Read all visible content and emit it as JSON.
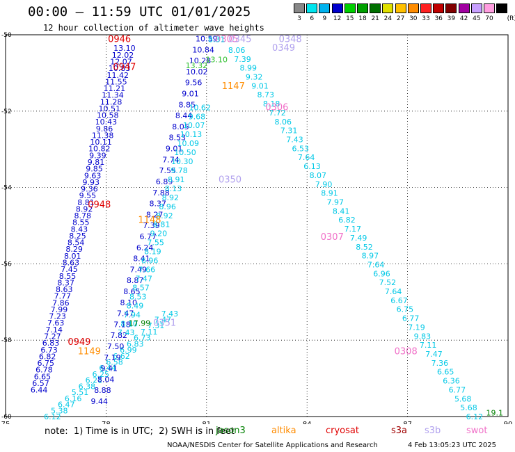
{
  "header": {
    "title": "00:00 — 11:59 UTC 01/01/2025",
    "subtitle": "12 hour collection of altimeter wave heights"
  },
  "colorbar": {
    "unit": "(ft)",
    "levels": [
      {
        "label": "3",
        "color": "#888888"
      },
      {
        "label": "6",
        "color": "#00e5ee"
      },
      {
        "label": "9",
        "color": "#00b2ee"
      },
      {
        "label": "12",
        "color": "#0000cd"
      },
      {
        "label": "15",
        "color": "#00d000"
      },
      {
        "label": "18",
        "color": "#00a000"
      },
      {
        "label": "21",
        "color": "#007000"
      },
      {
        "label": "24",
        "color": "#e0e000"
      },
      {
        "label": "27",
        "color": "#ffc000"
      },
      {
        "label": "30",
        "color": "#ff8c00"
      },
      {
        "label": "33",
        "color": "#ff2020"
      },
      {
        "label": "36",
        "color": "#c00000"
      },
      {
        "label": "39",
        "color": "#800000"
      },
      {
        "label": "42",
        "color": "#a000a0"
      },
      {
        "label": "45",
        "color": "#c8a0ff"
      },
      {
        "label": "70",
        "color": "#ff9ee0"
      },
      {
        "label": "",
        "color": "#000000"
      }
    ]
  },
  "chart_data": {
    "type": "scatter",
    "xlim": [
      75,
      90
    ],
    "ylim": [
      -60,
      -50
    ],
    "xticks": [
      "75",
      "78",
      "81",
      "84",
      "87",
      "90"
    ],
    "yticks": [
      "-50",
      "-52",
      "-54",
      "-56",
      "-58",
      "-60"
    ],
    "grid": true,
    "colors": {
      "cyan": "#00c8e6",
      "blue": "#0000cc",
      "green": "#30c030",
      "dkgreen": "#008000",
      "orange": "#ff8c00",
      "red": "#e00000",
      "lav": "#b0a0ee",
      "pink": "#f070c8"
    },
    "tracks": [
      {
        "name": "track-1",
        "color": "blue",
        "start": [
          78.55,
          -50.35
        ],
        "end": [
          76.0,
          -59.3
        ],
        "values": [
          "13.10",
          "12.02",
          "12.07",
          "10.83",
          "11.42",
          "11.55",
          "11.21",
          "11.34",
          "11.28",
          "10.51",
          "10.58",
          "10.43",
          "9.86",
          "11.38",
          "10.11",
          "10.82",
          "9.39",
          "9.81",
          "9.85",
          "9.63",
          "9.93",
          "9.36",
          "9.55",
          "8.81",
          "8.92",
          "8.78",
          "8.55",
          "8.43",
          "8.25",
          "8.54",
          "8.29",
          "8.01",
          "8.63",
          "7.45",
          "8.55",
          "8.37",
          "8.63",
          "7.77",
          "7.86",
          "7.99",
          "7.23",
          "7.63",
          "7.14",
          "7.27",
          "6.83",
          "6.73",
          "6.82",
          "6.75",
          "6.78",
          "6.65",
          "6.57",
          "6.44"
        ]
      },
      {
        "name": "track-2",
        "color": "cyan",
        "start": [
          79.9,
          -57.3
        ],
        "end": [
          76.4,
          -60.0
        ],
        "values": [
          "7.43",
          "7.47",
          "7.31",
          "7.11",
          "6.73",
          "6.83",
          "6.99",
          "6.62",
          "6.58",
          "6.44",
          "6.25",
          "6.21",
          "6.38",
          "5.51",
          "6.16",
          "6.47",
          "5.38",
          "6.12"
        ]
      },
      {
        "name": "track-3",
        "color": "blue",
        "start": [
          81.0,
          -50.1
        ],
        "end": [
          77.8,
          -59.6
        ],
        "values": [
          "10.59",
          "10.84",
          "10.28",
          "10.02",
          "9.56",
          "9.01",
          "8.85",
          "8.44",
          "8.05",
          "8.53",
          "9.01",
          "7.74",
          "7.55",
          "6.89",
          "7.88",
          "8.37",
          "8.27",
          "7.39",
          "6.77",
          "6.24",
          "8.41",
          "7.49",
          "8.87",
          "8.65",
          "8.10",
          "7.47",
          "7.18",
          "7.82",
          "7.50",
          "7.19",
          "9.41",
          "8.04",
          "8.88",
          "9.44"
        ]
      },
      {
        "name": "track-4",
        "color": "cyan",
        "start": [
          81.9,
          -50.4
        ],
        "end": [
          89.0,
          -60.0
        ],
        "values": [
          "8.06",
          "7.39",
          "8.99",
          "9.32",
          "9.01",
          "8.73",
          "8.18",
          "7.72",
          "8.06",
          "7.31",
          "7.43",
          "6.53",
          "7.64",
          "6.13",
          "8.07",
          "7.90",
          "8.91",
          "7.97",
          "8.41",
          "6.82",
          "7.17",
          "7.49",
          "8.52",
          "8.97",
          "7.64",
          "6.96",
          "7.52",
          "7.64",
          "6.67",
          "6.75",
          "6.77",
          "7.19",
          "9.83",
          "7.11",
          "7.47",
          "7.36",
          "6.65",
          "6.36",
          "6.77",
          "5.68",
          "5.68",
          "6.12"
        ]
      },
      {
        "name": "track-5",
        "color": "cyan",
        "start": [
          80.8,
          -51.9
        ],
        "end": [
          78.6,
          -57.8
        ],
        "values": [
          "10.62",
          "9.68",
          "10.07",
          "10.13",
          "10.09",
          "10.50",
          "10.30",
          "9.78",
          "8.91",
          "8.13",
          "8.92",
          "8.96",
          "8.92",
          "8.81",
          "9.20",
          "7.55",
          "8.19",
          "6.96",
          "7.66",
          "7.47",
          "8.57",
          "8.53",
          "8.49",
          "7.94",
          "8.10",
          "7.43"
        ]
      }
    ],
    "annotations": [
      {
        "text": "0946",
        "x": 78.4,
        "y": -50.12,
        "color": "red"
      },
      {
        "text": "0947",
        "x": 78.55,
        "y": -50.85,
        "color": "red"
      },
      {
        "text": "0948",
        "x": 77.8,
        "y": -54.45,
        "color": "red"
      },
      {
        "text": "0949",
        "x": 77.2,
        "y": -58.05,
        "color": "red"
      },
      {
        "text": "1149",
        "x": 77.5,
        "y": -58.3,
        "color": "orange"
      },
      {
        "text": "1148",
        "x": 79.3,
        "y": -54.85,
        "color": "orange"
      },
      {
        "text": "1147",
        "x": 81.8,
        "y": -51.35,
        "color": "orange"
      },
      {
        "text": "0305",
        "x": 81.6,
        "y": -50.12,
        "color": "pink"
      },
      {
        "text": "0345",
        "x": 82.0,
        "y": -50.12,
        "color": "lav"
      },
      {
        "text": "0348",
        "x": 83.5,
        "y": -50.12,
        "color": "lav"
      },
      {
        "text": "0349",
        "x": 83.3,
        "y": -50.35,
        "color": "lav"
      },
      {
        "text": "0306",
        "x": 83.1,
        "y": -51.9,
        "color": "pink"
      },
      {
        "text": "0350",
        "x": 81.7,
        "y": -53.8,
        "color": "lav"
      },
      {
        "text": "0307",
        "x": 84.75,
        "y": -55.3,
        "color": "pink"
      },
      {
        "text": "0351",
        "x": 79.75,
        "y": -57.55,
        "color": "lav"
      },
      {
        "text": "0308",
        "x": 86.95,
        "y": -58.3,
        "color": "pink"
      },
      {
        "text": "17.99",
        "x": 79.0,
        "y": -57.55,
        "color": "dkgreen"
      },
      {
        "text": "13.32",
        "x": 80.7,
        "y": -50.8,
        "color": "green"
      },
      {
        "text": "13.10",
        "x": 81.3,
        "y": -50.65,
        "color": "green"
      },
      {
        "text": "8.31",
        "x": 81.3,
        "y": -50.12,
        "color": "cyan"
      },
      {
        "text": "19.1",
        "x": 89.6,
        "y": -59.9,
        "color": "dkgreen"
      }
    ]
  },
  "footer": {
    "note": "note:  1) Time is in UTC;  2) SWH is in feet",
    "legend": [
      {
        "label": "jason3",
        "color": "#008000"
      },
      {
        "label": "altika",
        "color": "#ff8c00"
      },
      {
        "label": "cryosat",
        "color": "#e00000"
      },
      {
        "label": "s3a",
        "color": "#a00000"
      },
      {
        "label": "s3b",
        "color": "#b0a0ee"
      },
      {
        "label": "swot",
        "color": "#f070c8"
      }
    ],
    "credit": "NOAA/NESDIS Center for Satellite Applications and Research",
    "stamp": "4 Feb 13:05:23 UTC 2025"
  }
}
